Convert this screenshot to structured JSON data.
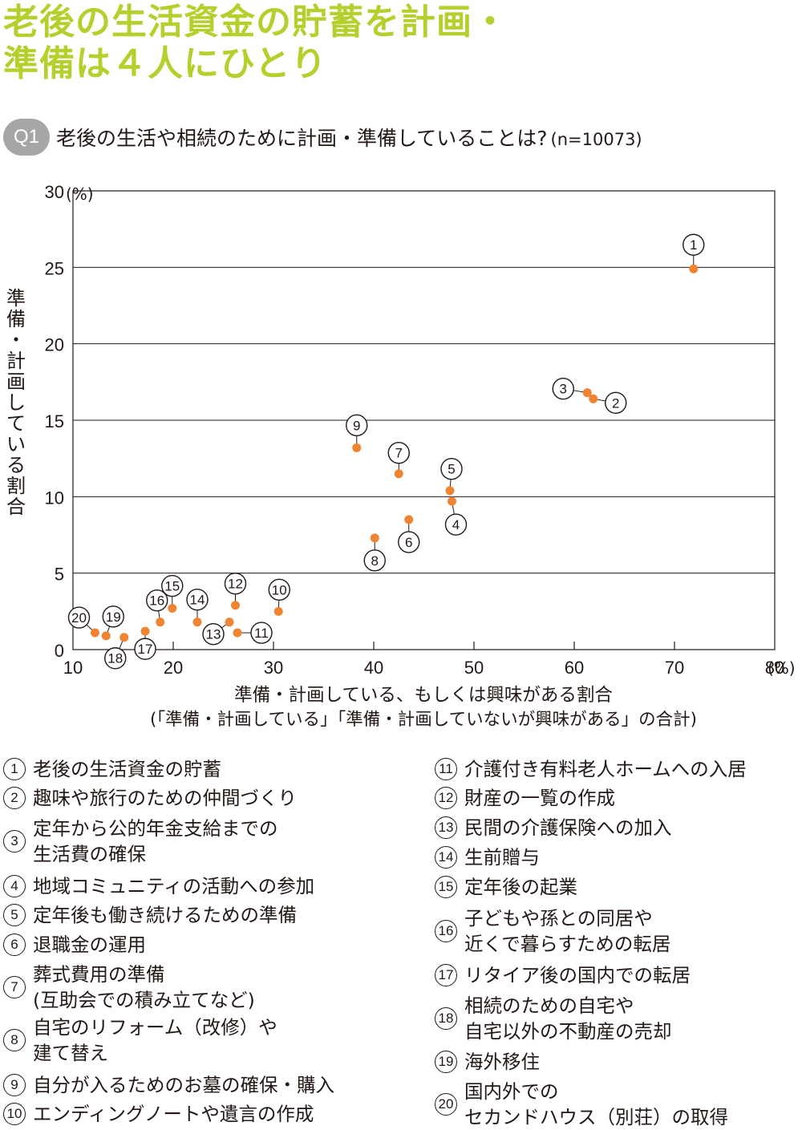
{
  "title": {
    "line1": "老後の生活資金の貯蓄を計画・",
    "line2": "準備は４人にひとり"
  },
  "question": {
    "badge": "Q1",
    "text": "老後の生活や相続のために計画・準備していることは?",
    "n": "(n=10073)"
  },
  "colors": {
    "title": "#b5cf2d",
    "point": "#ef8432",
    "badge": "#a6a6a6",
    "grid": "#231815"
  },
  "chart_data": {
    "type": "scatter",
    "xlabel_line1": "準備・計画している、もしくは興味がある割合",
    "xlabel_line2": "(「準備・計画している」「準備・計画していないが興味がある」の合計)",
    "ylabel": "準備・計画している割合",
    "xlim": [
      10,
      80
    ],
    "ylim": [
      0,
      30
    ],
    "x_ticks": [
      "10",
      "20",
      "30",
      "40",
      "50",
      "60",
      "70",
      "80"
    ],
    "x_unit": "(%)",
    "y_ticks": [
      "0",
      "5",
      "10",
      "15",
      "20",
      "25",
      "30"
    ],
    "y_unit": "(%)",
    "grid": "horizontal",
    "points": [
      {
        "id": 1,
        "label": "①",
        "x": 71.9,
        "y": 24.9
      },
      {
        "id": 2,
        "label": "②",
        "x": 61.9,
        "y": 16.4
      },
      {
        "id": 3,
        "label": "③",
        "x": 61.3,
        "y": 16.8
      },
      {
        "id": 4,
        "label": "④",
        "x": 47.8,
        "y": 9.7
      },
      {
        "id": 5,
        "label": "⑤",
        "x": 47.6,
        "y": 10.4
      },
      {
        "id": 6,
        "label": "⑥",
        "x": 43.5,
        "y": 8.5
      },
      {
        "id": 7,
        "label": "⑦",
        "x": 42.5,
        "y": 11.5
      },
      {
        "id": 8,
        "label": "⑧",
        "x": 40.1,
        "y": 7.3
      },
      {
        "id": 9,
        "label": "⑨",
        "x": 38.3,
        "y": 13.2
      },
      {
        "id": 10,
        "label": "⑩",
        "x": 30.5,
        "y": 2.5
      },
      {
        "id": 11,
        "label": "⑪",
        "x": 26.4,
        "y": 1.1
      },
      {
        "id": 12,
        "label": "⑫",
        "x": 26.2,
        "y": 2.9
      },
      {
        "id": 13,
        "label": "⑬",
        "x": 25.6,
        "y": 1.8
      },
      {
        "id": 14,
        "label": "⑭",
        "x": 22.4,
        "y": 1.8
      },
      {
        "id": 15,
        "label": "⑮",
        "x": 19.9,
        "y": 2.7
      },
      {
        "id": 16,
        "label": "⑯",
        "x": 18.7,
        "y": 1.8
      },
      {
        "id": 17,
        "label": "⑰",
        "x": 17.2,
        "y": 1.2
      },
      {
        "id": 18,
        "label": "⑱",
        "x": 15.1,
        "y": 0.8
      },
      {
        "id": 19,
        "label": "⑲",
        "x": 13.3,
        "y": 0.9
      },
      {
        "id": 20,
        "label": "⑳",
        "x": 12.2,
        "y": 1.1
      }
    ]
  },
  "legend_left": [
    {
      "num": "①",
      "lines": [
        "老後の生活資金の貯蓄"
      ]
    },
    {
      "num": "②",
      "lines": [
        "趣味や旅行のための仲間づくり"
      ]
    },
    {
      "num": "③",
      "lines": [
        "定年から公的年金支給までの",
        "生活費の確保"
      ]
    },
    {
      "num": "④",
      "lines": [
        "地域コミュニティの活動への参加"
      ]
    },
    {
      "num": "⑤",
      "lines": [
        "定年後も働き続けるための準備"
      ]
    },
    {
      "num": "⑥",
      "lines": [
        "退職金の運用"
      ]
    },
    {
      "num": "⑦",
      "lines": [
        "葬式費用の準備",
        "(互助会での積み立てなど)"
      ]
    },
    {
      "num": "⑧",
      "lines": [
        "自宅のリフォーム（改修）や",
        "建て替え"
      ]
    },
    {
      "num": "⑨",
      "lines": [
        "自分が入るためのお墓の確保・購入"
      ]
    },
    {
      "num": "⑩",
      "lines": [
        "エンディングノートや遺言の作成"
      ]
    }
  ],
  "legend_right": [
    {
      "num": "⑪",
      "lines": [
        "介護付き有料老人ホームへの入居"
      ]
    },
    {
      "num": "⑫",
      "lines": [
        "財産の一覧の作成"
      ]
    },
    {
      "num": "⑬",
      "lines": [
        "民間の介護保険への加入"
      ]
    },
    {
      "num": "⑭",
      "lines": [
        "生前贈与"
      ]
    },
    {
      "num": "⑮",
      "lines": [
        "定年後の起業"
      ]
    },
    {
      "num": "⑯",
      "lines": [
        "子どもや孫との同居や",
        "近くで暮らすための転居"
      ]
    },
    {
      "num": "⑰",
      "lines": [
        "リタイア後の国内での転居"
      ]
    },
    {
      "num": "⑱",
      "lines": [
        "相続のための自宅や",
        "自宅以外の不動産の売却"
      ]
    },
    {
      "num": "⑲",
      "lines": [
        "海外移住"
      ]
    },
    {
      "num": "⑳",
      "lines": [
        "国内外での",
        "セカンドハウス（別荘）の取得"
      ]
    }
  ]
}
